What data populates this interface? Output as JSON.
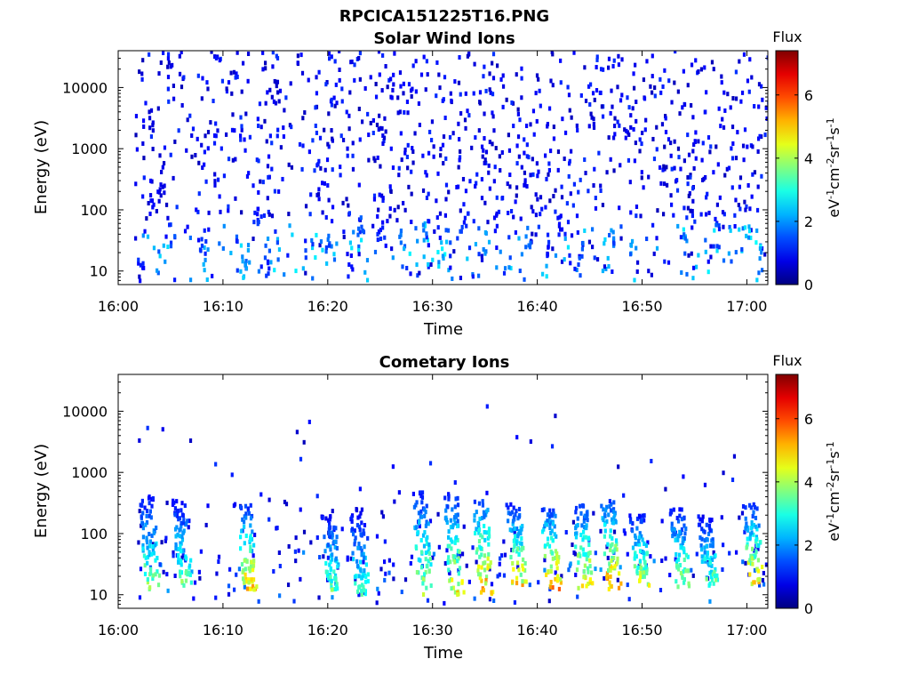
{
  "figure_title": "RPCICA151225T16.PNG",
  "chart_data": [
    {
      "type": "heatmap",
      "title": "Solar Wind Ions",
      "xlabel": "Time",
      "ylabel": "Energy (eV)",
      "y_scale": "log",
      "ylim": [
        6,
        40000
      ],
      "xlim": [
        "16:00",
        "17:02"
      ],
      "x_ticks": [
        "16:00",
        "16:10",
        "16:20",
        "16:30",
        "16:40",
        "16:50",
        "17:00"
      ],
      "y_ticks": [
        "10",
        "100",
        "1000",
        "10000"
      ],
      "colorbar": {
        "label": "Flux",
        "units": "eV-1cm-2sr-1s-1",
        "range": [
          0,
          7.4
        ],
        "ticks": [
          "0",
          "2",
          "4",
          "6"
        ],
        "colormap": "jet"
      },
      "cells": [
        {
          "t": "16:02",
          "e": 10,
          "v": 1.2
        },
        {
          "t": "16:03",
          "e": 120,
          "v": 1.0
        },
        {
          "t": "16:04",
          "e": 200,
          "v": 0.8
        },
        {
          "t": "16:05",
          "e": 40,
          "v": 1.5
        },
        {
          "t": "16:08",
          "e": 30,
          "v": 1.6
        },
        {
          "t": "16:12",
          "e": 15,
          "v": 2.0
        },
        {
          "t": "16:13",
          "e": 90,
          "v": 1.3
        },
        {
          "t": "16:14",
          "e": 12,
          "v": 1.4
        },
        {
          "t": "16:20",
          "e": 30,
          "v": 1.8
        },
        {
          "t": "16:22",
          "e": 12,
          "v": 1.1
        },
        {
          "t": "16:23",
          "e": 50,
          "v": 1.7
        },
        {
          "t": "16:25",
          "e": 45,
          "v": 1.2
        },
        {
          "t": "16:27",
          "e": 30,
          "v": 2.1
        },
        {
          "t": "16:29",
          "e": 40,
          "v": 2.3
        },
        {
          "t": "16:31",
          "e": 20,
          "v": 2.6
        },
        {
          "t": "16:33",
          "e": 80,
          "v": 1.4
        },
        {
          "t": "16:35",
          "e": 30,
          "v": 2.2
        },
        {
          "t": "16:36",
          "e": 60,
          "v": 1.1
        },
        {
          "t": "16:39",
          "e": 35,
          "v": 1.9
        },
        {
          "t": "16:41",
          "e": 25,
          "v": 1.3
        },
        {
          "t": "16:42",
          "e": 60,
          "v": 1.0
        },
        {
          "t": "16:44",
          "e": 20,
          "v": 1.5
        },
        {
          "t": "16:47",
          "e": 30,
          "v": 1.8
        },
        {
          "t": "16:49",
          "e": 20,
          "v": 2.0
        },
        {
          "t": "16:54",
          "e": 30,
          "v": 2.1
        },
        {
          "t": "16:57",
          "e": 40,
          "v": 1.5
        },
        {
          "t": "17:00",
          "e": 40,
          "v": 2.4
        },
        {
          "t": "17:01",
          "e": 25,
          "v": 2.6
        },
        {
          "t": "16:03",
          "e": 3000,
          "v": 0.7
        },
        {
          "t": "16:15",
          "e": 8000,
          "v": 0.7
        },
        {
          "t": "16:25",
          "e": 1500,
          "v": 0.8
        },
        {
          "t": "16:35",
          "e": 600,
          "v": 0.8
        },
        {
          "t": "16:45",
          "e": 2500,
          "v": 0.7
        },
        {
          "t": "16:55",
          "e": 1200,
          "v": 0.9
        }
      ]
    },
    {
      "type": "heatmap",
      "title": "Cometary Ions",
      "xlabel": "Time",
      "ylabel": "Energy (eV)",
      "y_scale": "log",
      "ylim": [
        6,
        40000
      ],
      "xlim": [
        "16:00",
        "17:02"
      ],
      "x_ticks": [
        "16:00",
        "16:10",
        "16:20",
        "16:30",
        "16:40",
        "16:50",
        "17:00"
      ],
      "y_ticks": [
        "10",
        "100",
        "1000",
        "10000"
      ],
      "colorbar": {
        "label": "Flux",
        "units": "eV-1cm-2sr-1s-1",
        "range": [
          0,
          7.4
        ],
        "ticks": [
          "0",
          "2",
          "4",
          "6"
        ],
        "colormap": "jet"
      },
      "bursts": [
        {
          "t": "16:03.2",
          "e_low": 12,
          "e_high": 400,
          "peak": 4.0
        },
        {
          "t": "16:06.3",
          "e_low": 14,
          "e_high": 350,
          "peak": 3.8
        },
        {
          "t": "16:12.5",
          "e_low": 12,
          "e_high": 300,
          "peak": 5.2
        },
        {
          "t": "16:20.5",
          "e_low": 12,
          "e_high": 200,
          "peak": 3.6
        },
        {
          "t": "16:23.2",
          "e_low": 10,
          "e_high": 250,
          "peak": 3.4
        },
        {
          "t": "16:29.2",
          "e_low": 10,
          "e_high": 500,
          "peak": 4.4
        },
        {
          "t": "16:32.2",
          "e_low": 10,
          "e_high": 450,
          "peak": 4.9
        },
        {
          "t": "16:35.0",
          "e_low": 10,
          "e_high": 400,
          "peak": 5.6
        },
        {
          "t": "16:38.2",
          "e_low": 14,
          "e_high": 300,
          "peak": 5.0
        },
        {
          "t": "16:41.5",
          "e_low": 12,
          "e_high": 250,
          "peak": 5.8
        },
        {
          "t": "16:44.5",
          "e_low": 12,
          "e_high": 300,
          "peak": 5.2
        },
        {
          "t": "16:47.2",
          "e_low": 12,
          "e_high": 350,
          "peak": 5.6
        },
        {
          "t": "16:50.0",
          "e_low": 14,
          "e_high": 200,
          "peak": 4.6
        },
        {
          "t": "16:53.8",
          "e_low": 12,
          "e_high": 250,
          "peak": 4.3
        },
        {
          "t": "16:56.5",
          "e_low": 14,
          "e_high": 200,
          "peak": 3.8
        },
        {
          "t": "17:00.8",
          "e_low": 15,
          "e_high": 300,
          "peak": 5.1
        }
      ]
    }
  ]
}
